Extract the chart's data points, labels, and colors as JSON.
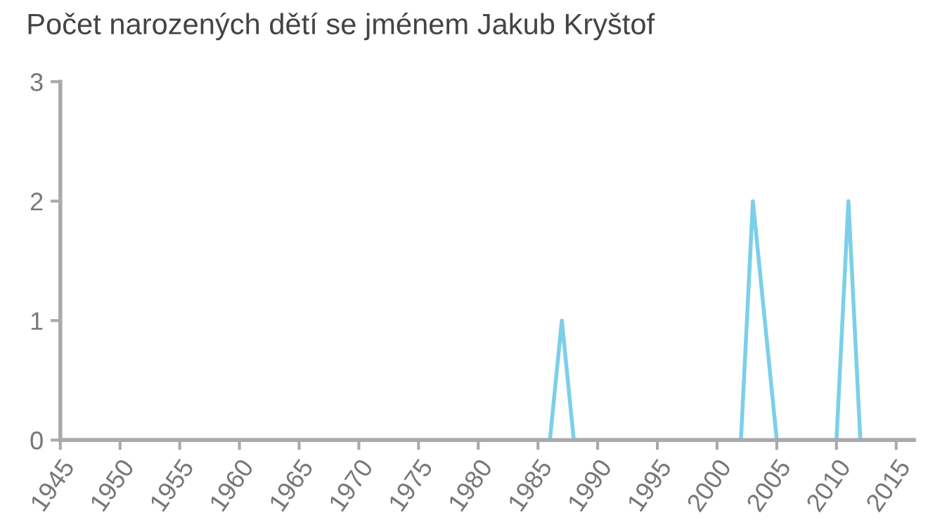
{
  "chart_data": {
    "type": "line",
    "title": "Počet narozených dětí se jménem Jakub Kryštof",
    "x": [
      1945,
      1986,
      1987,
      1988,
      2002,
      2003,
      2005,
      2010,
      2011,
      2012,
      2016.5
    ],
    "series": [
      {
        "color": "#7ccfea",
        "values": [
          0,
          0,
          1,
          0,
          0,
          2,
          0,
          0,
          2,
          0,
          0
        ]
      }
    ],
    "xlim": [
      1945,
      2016.5
    ],
    "xticks": [
      1945,
      1950,
      1955,
      1960,
      1965,
      1970,
      1975,
      1980,
      1985,
      1990,
      1995,
      2000,
      2005,
      2010,
      2015
    ],
    "ylim": [
      0,
      3
    ],
    "yticks": [
      0,
      1,
      2,
      3
    ],
    "grid": false,
    "marker": "none",
    "line_style": "solid"
  }
}
